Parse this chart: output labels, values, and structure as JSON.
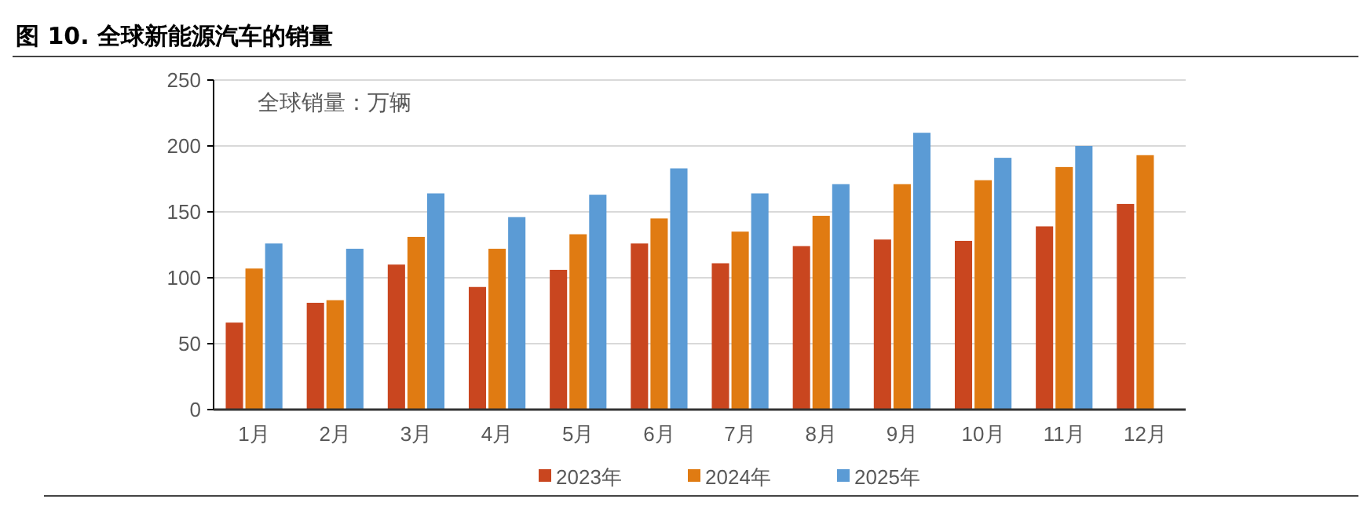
{
  "chart_data": {
    "type": "bar",
    "title": "图 10. 全球新能源汽车的销量",
    "annotations": [
      "全球销量：万辆"
    ],
    "categories": [
      "1月",
      "2月",
      "3月",
      "4月",
      "5月",
      "6月",
      "7月",
      "8月",
      "9月",
      "10月",
      "11月",
      "12月"
    ],
    "series": [
      {
        "name": "2023年",
        "color": "#c9461f",
        "values": [
          66,
          81,
          110,
          93,
          106,
          126,
          111,
          124,
          129,
          128,
          139,
          156
        ]
      },
      {
        "name": "2024年",
        "color": "#e07b12",
        "values": [
          107,
          83,
          131,
          122,
          133,
          145,
          135,
          147,
          171,
          174,
          184,
          193
        ]
      },
      {
        "name": "2025年",
        "color": "#5b9bd5",
        "values": [
          126,
          122,
          164,
          146,
          163,
          183,
          164,
          171,
          210,
          191,
          200,
          null
        ]
      }
    ],
    "ylim": [
      0,
      250
    ],
    "yticks": [
      0,
      50,
      100,
      150,
      200,
      250
    ],
    "grid": "y",
    "legend": "bottom"
  }
}
